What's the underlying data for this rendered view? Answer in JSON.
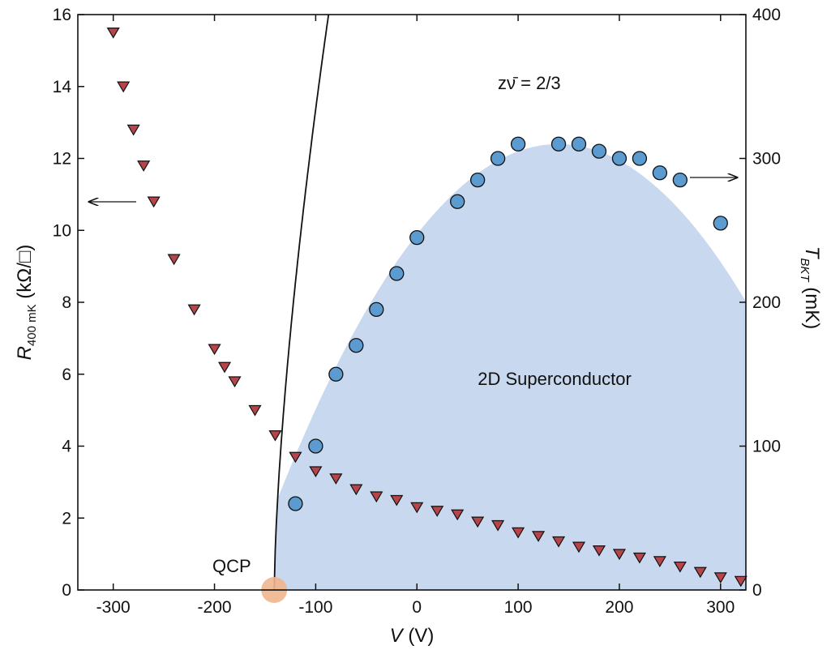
{
  "chart_data": {
    "type": "scatter",
    "title": "",
    "xlabel": {
      "italic": "V",
      "rest": " (V)"
    },
    "ylabel_left": {
      "italic": "R",
      "sub": "400 mK",
      "rest": " (kΩ/□)"
    },
    "ylabel_right": {
      "italic": "T",
      "sub": "BKT",
      "rest": " (mK)"
    },
    "xlim": [
      -335,
      325
    ],
    "ylim_left": [
      0,
      16
    ],
    "ylim_right": [
      0,
      400
    ],
    "x_ticks": [
      -300,
      -200,
      -100,
      0,
      100,
      200,
      300
    ],
    "x_tick_labels": [
      "-300",
      "-200",
      "-100",
      "0",
      "100",
      "200",
      "300"
    ],
    "y_left_ticks": [
      0,
      2,
      4,
      6,
      8,
      10,
      12,
      14,
      16
    ],
    "y_left_tick_labels": [
      "0",
      "2",
      "4",
      "6",
      "8",
      "10",
      "12",
      "14",
      "16"
    ],
    "y_right_ticks": [
      0,
      100,
      200,
      300,
      400
    ],
    "y_right_tick_labels": [
      "0",
      "100",
      "200",
      "300",
      "400"
    ],
    "grid": false,
    "legend": "none",
    "series": [
      {
        "axis": "left",
        "marker": "triangle-down",
        "color": "#b5454b",
        "x": [
          -300,
          -290,
          -280,
          -270,
          -260,
          -240,
          -220,
          -200,
          -190,
          -180,
          -160,
          -140,
          -120,
          -100,
          -80,
          -60,
          -40,
          -20,
          0,
          20,
          40,
          60,
          80,
          100,
          120,
          140,
          160,
          180,
          200,
          220,
          240,
          260,
          280,
          300,
          320
        ],
        "y": [
          15.5,
          14.0,
          12.8,
          11.8,
          10.8,
          9.2,
          7.8,
          6.7,
          6.2,
          5.8,
          5.0,
          4.3,
          3.7,
          3.3,
          3.1,
          2.8,
          2.6,
          2.5,
          2.3,
          2.2,
          2.1,
          1.9,
          1.8,
          1.6,
          1.5,
          1.35,
          1.2,
          1.1,
          1.0,
          0.9,
          0.8,
          0.65,
          0.5,
          0.35,
          0.25
        ]
      },
      {
        "axis": "right",
        "marker": "circle",
        "color": "#5b9bd0",
        "x": [
          -120,
          -100,
          -80,
          -60,
          -40,
          -20,
          0,
          40,
          60,
          80,
          100,
          140,
          160,
          180,
          200,
          220,
          240,
          260,
          300
        ],
        "y": [
          60,
          100,
          150,
          170,
          195,
          220,
          245,
          270,
          285,
          300,
          310,
          310,
          310,
          305,
          300,
          300,
          290,
          285,
          255
        ]
      }
    ],
    "fit_curve": {
      "label": "zν̄ = 2/3",
      "x_start": -141,
      "coef": 28.1,
      "exponent": 0.6667,
      "color": "#111111"
    },
    "region": {
      "label": "2D Superconductor",
      "color": "#c8d8ef",
      "peak_x": 140,
      "peak_y": 310
    },
    "qcp": {
      "label": "QCP",
      "x": -141,
      "color": "#f0b58d"
    }
  }
}
